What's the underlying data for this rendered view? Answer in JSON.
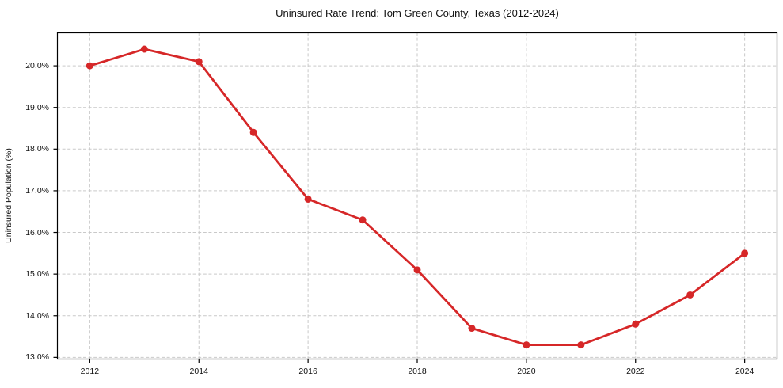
{
  "chart_data": {
    "type": "line",
    "title": "Uninsured Rate Trend: Tom Green County, Texas (2012-2024)",
    "xlabel": "",
    "ylabel": "Uninsured Population (%)",
    "x": [
      2012,
      2013,
      2014,
      2015,
      2016,
      2017,
      2018,
      2019,
      2020,
      2021,
      2022,
      2023,
      2024
    ],
    "values": [
      20.0,
      20.4,
      20.1,
      18.4,
      16.8,
      16.3,
      15.1,
      13.7,
      13.3,
      13.3,
      13.8,
      14.5,
      15.5
    ],
    "xlim": [
      2011.4,
      2024.6
    ],
    "ylim": [
      12.95,
      20.8
    ],
    "x_ticks": [
      2012,
      2014,
      2016,
      2018,
      2020,
      2022,
      2024
    ],
    "x_tick_labels": [
      "2012",
      "2014",
      "2016",
      "2018",
      "2020",
      "2022",
      "2024"
    ],
    "y_ticks": [
      13,
      14,
      15,
      16,
      17,
      18,
      19,
      20
    ],
    "y_tick_labels": [
      "13.0%",
      "14.0%",
      "15.0%",
      "16.0%",
      "17.0%",
      "18.0%",
      "19.0%",
      "20.0%"
    ],
    "grid": true,
    "legend": "none",
    "marker": "circle",
    "colors": {
      "line": "#d62728",
      "marker": "#d62728",
      "grid": "#c9c9c9",
      "axis": "#000000",
      "text": "#111111",
      "background": "#ffffff"
    }
  }
}
